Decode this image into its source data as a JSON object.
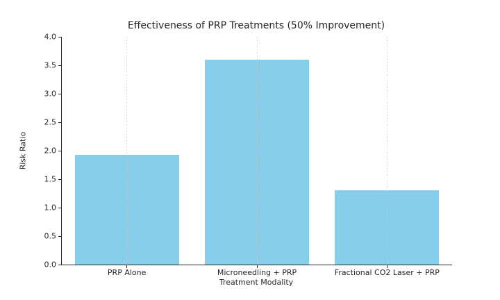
{
  "chart_data": {
    "type": "bar",
    "title": "Effectiveness of PRP Treatments (50% Improvement)",
    "xlabel": "Treatment Modality",
    "ylabel": "Risk Ratio",
    "categories": [
      "PRP Alone",
      "Microneedling + PRP",
      "Fractional CO2 Laser + PRP"
    ],
    "values": [
      1.93,
      3.6,
      1.3
    ],
    "ylim": [
      0.0,
      4.0
    ],
    "ytick_step": 0.5,
    "ytick_labels": [
      "0.0",
      "0.5",
      "1.0",
      "1.5",
      "2.0",
      "2.5",
      "3.0",
      "3.5",
      "4.0"
    ],
    "legend": "none",
    "grid": "vertical-dotted-at-category-centers",
    "colors": {
      "bar_fill": "#87CEEB",
      "axis": "#262626",
      "gridline": "#cccccc",
      "text": "#262626",
      "background": "#ffffff"
    }
  }
}
